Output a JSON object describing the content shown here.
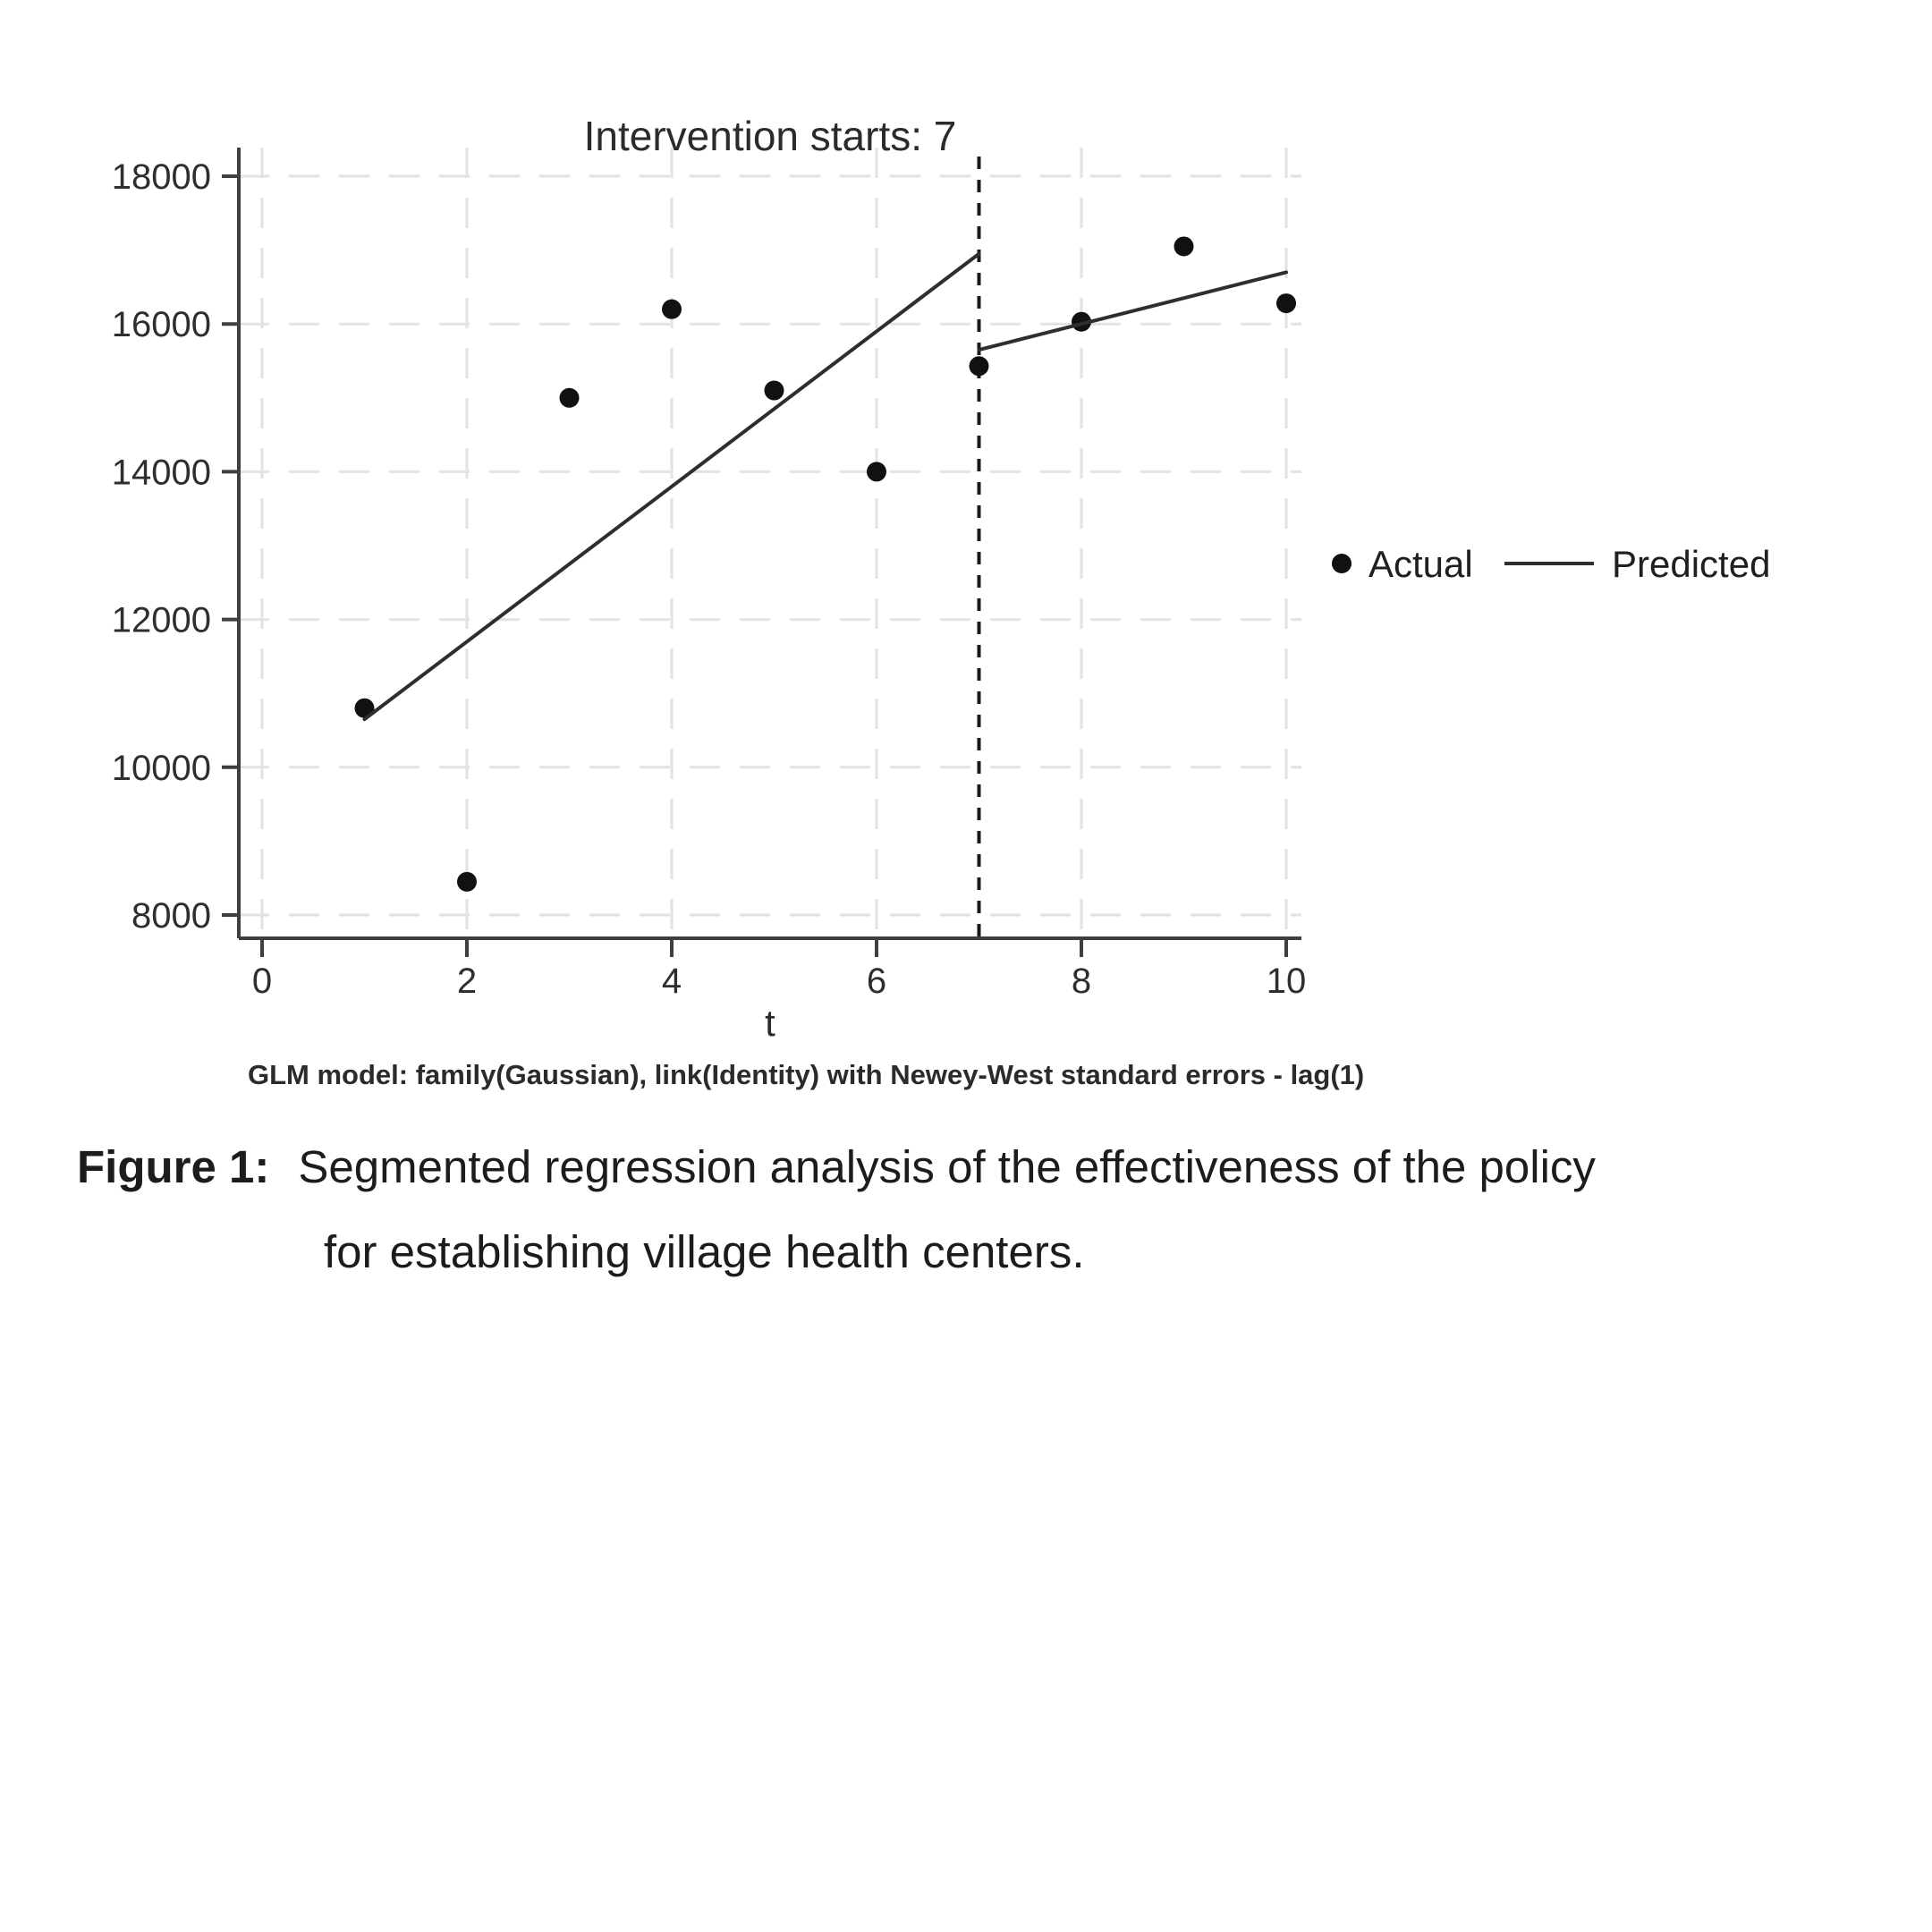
{
  "figure": {
    "caption_label": "Figure 1:",
    "caption_line1": "Segmented regression analysis of the effectiveness of the policy",
    "caption_line2": "for establishing village health centers."
  },
  "chart_data": {
    "type": "scatter",
    "title": "Intervention starts: 7",
    "xlabel": "t",
    "ylabel": "",
    "note": "GLM model: family(Gaussian), link(Identity) with Newey-West standard errors - lag(1)",
    "x_ticks": [
      0,
      2,
      4,
      6,
      8,
      10
    ],
    "y_ticks": [
      8000,
      10000,
      12000,
      14000,
      16000,
      18000
    ],
    "xlim": [
      -0.23,
      10.15
    ],
    "ylim": [
      7680,
      18390
    ],
    "grid": true,
    "intervention_x": 7,
    "legend_position": "right-middle",
    "series": [
      {
        "name": "Actual",
        "type": "scatter",
        "x": [
          1,
          2,
          3,
          4,
          5,
          6,
          7,
          8,
          9,
          10
        ],
        "values": [
          10800,
          8450,
          15000,
          16200,
          15100,
          14000,
          15430,
          16030,
          17050,
          16280
        ]
      },
      {
        "name": "Predicted",
        "type": "line",
        "segments": [
          {
            "x": [
              1,
              7
            ],
            "values": [
              10650,
              16950
            ]
          },
          {
            "x": [
              7,
              10
            ],
            "values": [
              15650,
              16700
            ]
          }
        ]
      }
    ],
    "legend": [
      {
        "label": "Actual",
        "marker": "dot"
      },
      {
        "label": "Predicted",
        "marker": "line"
      }
    ],
    "colors": {
      "background": "#ffffff",
      "point": "#111111",
      "line": "#2e2e2e",
      "grid": "#e2e2e2",
      "axis": "#3f3f3f",
      "text": "#2b2b2b",
      "intervention_line": "#1a1a1a"
    }
  }
}
